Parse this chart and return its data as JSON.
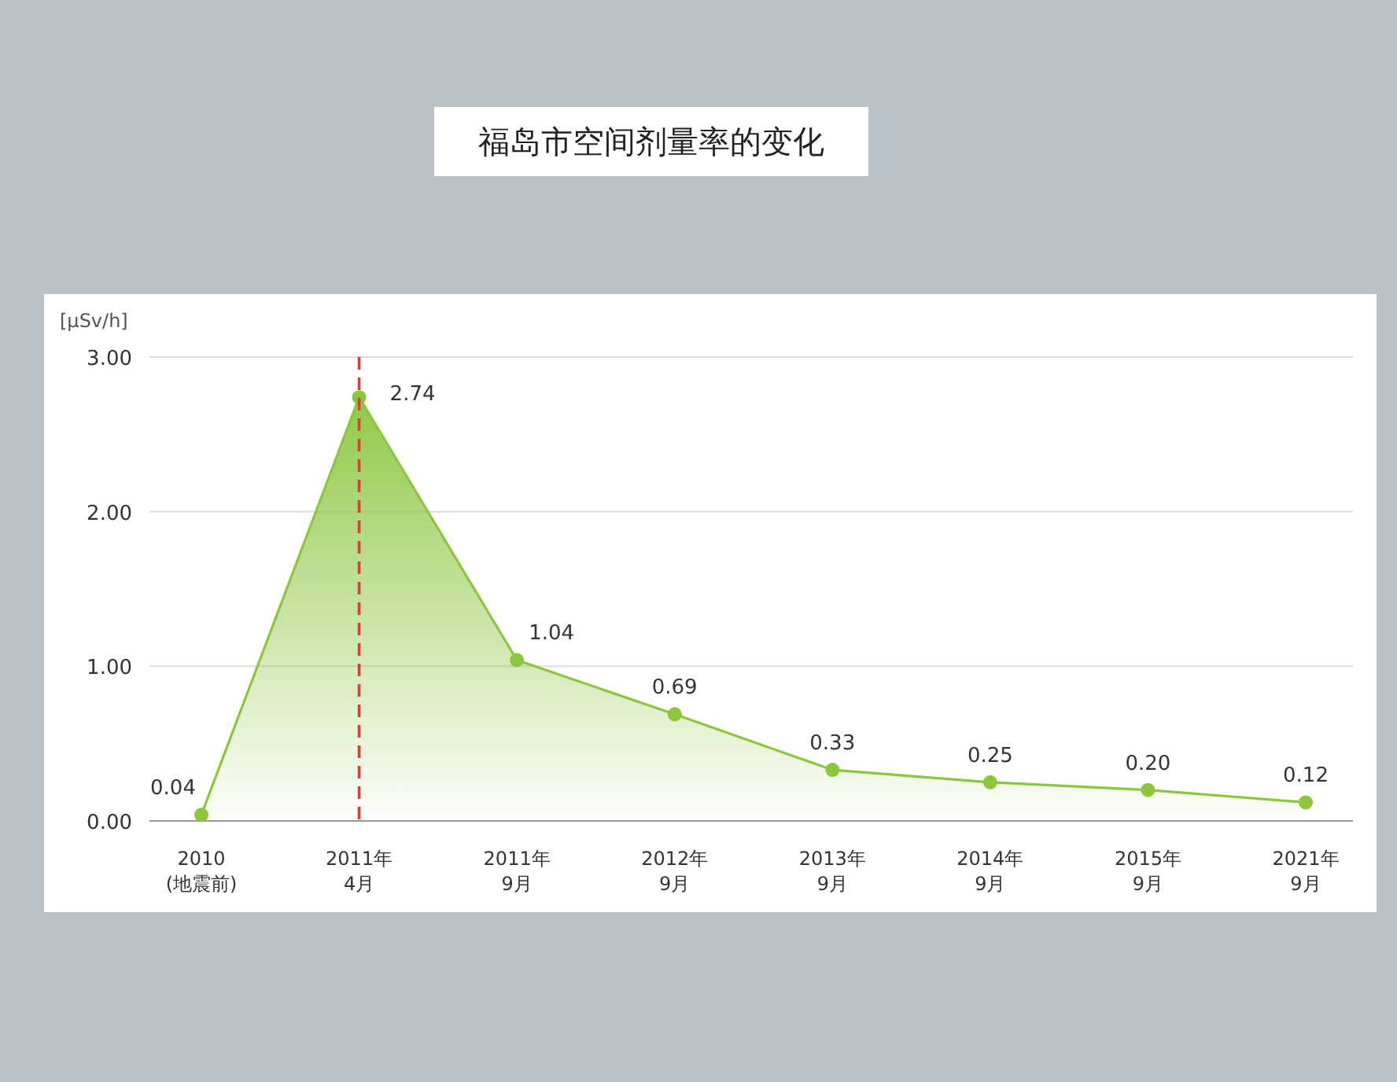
{
  "chart_data": {
    "type": "area",
    "title": "福岛市空间剂量率的变化",
    "ylabel": "[μSv/h]",
    "categories": [
      "2010\n(地震前)",
      "2011年\n4月",
      "2011年\n9月",
      "2012年\n9月",
      "2013年\n9月",
      "2014年\n9月",
      "2015年\n9月",
      "2021年\n9月"
    ],
    "series": [
      {
        "color": "#8cc63f",
        "values": [
          0.04,
          2.74,
          1.04,
          0.69,
          0.33,
          0.25,
          0.2,
          0.12
        ]
      }
    ],
    "ylim": [
      0,
      3
    ],
    "yticks": [
      {
        "value": 0,
        "label": "0.00"
      },
      {
        "value": 1,
        "label": "1.00"
      },
      {
        "value": 2,
        "label": "2.00"
      },
      {
        "value": 3,
        "label": "3.00"
      }
    ],
    "value_labels": [
      "0.04",
      "2.74",
      "1.04",
      "0.69",
      "0.33",
      "0.25",
      "0.20",
      "0.12"
    ],
    "ref_lines": [
      {
        "axis": "x",
        "value": "2011年\n4月",
        "color": "#e53935",
        "line_style": "dashed"
      }
    ],
    "grid": "y",
    "marker": "circle"
  }
}
